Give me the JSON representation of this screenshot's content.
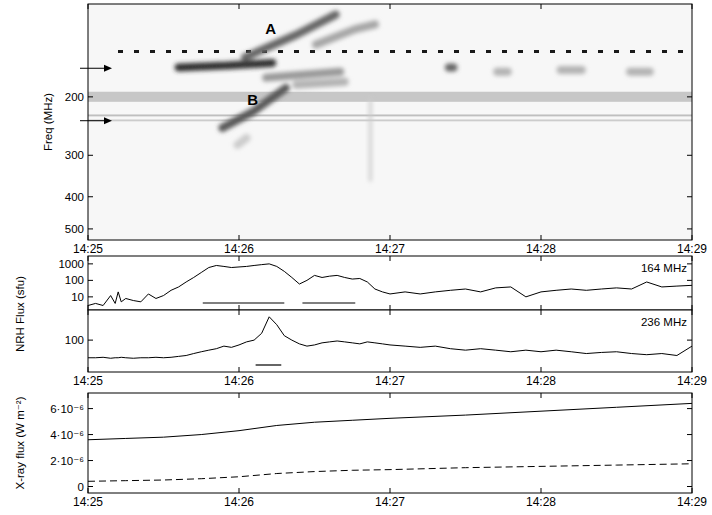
{
  "chart_data": [
    {
      "type": "spectrogram",
      "log": "y",
      "ylabel": "Freq (MHz)",
      "xlim": [
        865,
        869
      ],
      "ylim": [
        540,
        105
      ],
      "xticks": [
        {
          "value": 865,
          "label": "14:25"
        },
        {
          "value": 866,
          "label": "14:26"
        },
        {
          "value": 867,
          "label": "14:27"
        },
        {
          "value": 868,
          "label": "14:28"
        },
        {
          "value": 869,
          "label": "14:29"
        }
      ],
      "yticks": [
        200,
        300,
        400,
        500
      ],
      "arrows": [
        164,
        236
      ],
      "interference": [
        {
          "f": [
            145,
            147
          ],
          "intensity": 0.9,
          "line_style": "dashed"
        },
        {
          "f": [
            193,
            207
          ],
          "intensity": 0.22,
          "line_style": "solid"
        },
        {
          "f": [
            226,
            229
          ],
          "intensity": 0.25,
          "line_style": "solid"
        },
        {
          "f": [
            234,
            237
          ],
          "intensity": 0.2,
          "line_style": "solid"
        }
      ],
      "bursts": [
        {
          "t": [
            865.6,
            865.92,
            866.22
          ],
          "f": [
            163,
            161,
            158
          ],
          "intensity": 0.8
        },
        {
          "t": [
            866.04,
            866.38,
            866.64
          ],
          "f": [
            152,
            130,
            113
          ],
          "intensity": 0.6
        },
        {
          "t": [
            866.51,
            866.77,
            866.9
          ],
          "f": [
            139,
            125,
            121
          ],
          "intensity": 0.35
        },
        {
          "t": [
            866.18,
            866.67
          ],
          "f": [
            175,
            168
          ],
          "intensity": 0.4
        },
        {
          "t": [
            866.38,
            866.7
          ],
          "f": [
            184,
            180
          ],
          "intensity": 0.3
        },
        {
          "t": [
            865.89,
            866.09,
            866.31
          ],
          "f": [
            248,
            222,
            188
          ],
          "intensity": 0.65
        },
        {
          "t": [
            865.99,
            866.05
          ],
          "f": [
            279,
            266
          ],
          "intensity": 0.2
        },
        {
          "t": [
            866.87,
            866.87
          ],
          "f": [
            204,
            357
          ],
          "intensity": 0.2
        },
        {
          "t": [
            867.39,
            867.42
          ],
          "f": [
            163,
            163
          ],
          "intensity": 0.6
        },
        {
          "t": [
            867.71,
            867.78
          ],
          "f": [
            168,
            168
          ],
          "intensity": 0.3
        },
        {
          "t": [
            868.13,
            868.27
          ],
          "f": [
            166,
            166
          ],
          "intensity": 0.3
        },
        {
          "t": [
            868.59,
            868.72
          ],
          "f": [
            168,
            168
          ],
          "intensity": 0.3
        }
      ],
      "annotations": [
        {
          "text": "A",
          "t": 866.21,
          "f": 125
        },
        {
          "text": "B",
          "t": 866.09,
          "f": 204
        }
      ]
    },
    {
      "type": "line",
      "log": "y",
      "ylabel": "NRH Flux (sfu)",
      "tick_labels": "y",
      "xlim": [
        865,
        869
      ],
      "ylim": [
        1.6,
        3000
      ],
      "xticks": [
        {
          "value": 865,
          "label": "14:25"
        },
        {
          "value": 866,
          "label": "14:26"
        },
        {
          "value": 867,
          "label": "14:27"
        },
        {
          "value": 868,
          "label": "14:28"
        },
        {
          "value": 869,
          "label": "14:29"
        }
      ],
      "yticks": [
        10,
        100,
        1000
      ],
      "intervals": [
        [
          865.76,
          866.3
        ],
        [
          866.42,
          866.77
        ]
      ],
      "x": [
        865.0,
        865.05,
        865.1,
        865.15,
        865.18,
        865.2,
        865.22,
        865.25,
        865.3,
        865.35,
        865.4,
        865.45,
        865.5,
        865.55,
        865.6,
        865.65,
        865.7,
        865.75,
        865.8,
        865.85,
        865.9,
        865.95,
        866.0,
        866.05,
        866.1,
        866.15,
        866.2,
        866.25,
        866.3,
        866.35,
        866.4,
        866.45,
        866.5,
        866.55,
        866.6,
        866.65,
        866.7,
        866.75,
        866.8,
        866.85,
        866.9,
        866.95,
        867.0,
        867.1,
        867.2,
        867.3,
        867.4,
        867.5,
        867.6,
        867.7,
        867.8,
        867.9,
        868.0,
        868.1,
        868.2,
        868.3,
        868.4,
        868.5,
        868.6,
        868.7,
        868.8,
        868.9,
        869.0
      ],
      "series": [
        {
          "name": "164 MHz",
          "color": "#000000",
          "values": [
            3,
            4,
            3,
            12,
            4,
            20,
            5,
            8,
            6,
            5,
            15,
            8,
            12,
            25,
            40,
            80,
            150,
            300,
            600,
            800,
            700,
            600,
            650,
            700,
            800,
            900,
            1000,
            700,
            350,
            150,
            60,
            100,
            200,
            150,
            180,
            200,
            150,
            120,
            130,
            80,
            30,
            20,
            15,
            20,
            15,
            20,
            25,
            30,
            20,
            35,
            40,
            10,
            20,
            25,
            30,
            25,
            30,
            35,
            30,
            80,
            40,
            45,
            50
          ]
        }
      ]
    },
    {
      "type": "line",
      "log": "y",
      "xlim": [
        865,
        869
      ],
      "ylim": [
        15,
        600
      ],
      "xticks": [
        {
          "value": 865,
          "label": "14:25"
        },
        {
          "value": 866,
          "label": "14:26"
        },
        {
          "value": 867,
          "label": "14:27"
        },
        {
          "value": 868,
          "label": "14:28"
        },
        {
          "value": 869,
          "label": "14:29"
        }
      ],
      "yticks": [
        100
      ],
      "intervals": [
        [
          866.11,
          866.28
        ]
      ],
      "x": [
        865.0,
        865.05,
        865.1,
        865.15,
        865.18,
        865.2,
        865.22,
        865.25,
        865.3,
        865.35,
        865.4,
        865.45,
        865.5,
        865.55,
        865.6,
        865.65,
        865.7,
        865.75,
        865.8,
        865.85,
        865.9,
        865.95,
        866.0,
        866.05,
        866.1,
        866.15,
        866.2,
        866.25,
        866.3,
        866.35,
        866.4,
        866.45,
        866.5,
        866.55,
        866.6,
        866.65,
        866.7,
        866.75,
        866.8,
        866.85,
        866.9,
        866.95,
        867.0,
        867.1,
        867.2,
        867.3,
        867.4,
        867.5,
        867.6,
        867.7,
        867.8,
        867.9,
        868.0,
        868.1,
        868.2,
        868.3,
        868.4,
        868.5,
        868.6,
        868.7,
        868.8,
        868.9,
        869.0
      ],
      "series": [
        {
          "name": "236 MHz",
          "color": "#000000",
          "values": [
            35,
            35,
            36,
            34,
            35,
            35,
            36,
            35,
            34,
            35,
            35,
            36,
            35,
            36,
            38,
            40,
            45,
            50,
            55,
            60,
            70,
            65,
            75,
            90,
            100,
            150,
            400,
            250,
            130,
            100,
            80,
            70,
            75,
            85,
            90,
            95,
            90,
            85,
            80,
            90,
            85,
            80,
            75,
            70,
            65,
            70,
            60,
            55,
            60,
            55,
            50,
            55,
            50,
            55,
            50,
            45,
            48,
            50,
            45,
            42,
            45,
            40,
            70
          ]
        }
      ]
    },
    {
      "type": "line",
      "ylabel": "X-ray flux (W m⁻²)",
      "xlim": [
        865,
        869
      ],
      "ylim": [
        -5e-07,
        7.2e-06
      ],
      "xticks": [
        {
          "value": 865,
          "label": "14:25"
        },
        {
          "value": 866,
          "label": "14:26"
        },
        {
          "value": 867,
          "label": "14:27"
        },
        {
          "value": 868,
          "label": "14:28"
        },
        {
          "value": 869,
          "label": "14:29"
        }
      ],
      "yticks": [
        0,
        {
          "value": 2e-06,
          "label": "2·10⁻⁶"
        },
        {
          "value": 4e-06,
          "label": "4·10⁻⁶"
        },
        {
          "value": 6e-06,
          "label": "6·10⁻⁶"
        }
      ],
      "x": [
        865.0,
        865.25,
        865.5,
        865.75,
        866.0,
        866.25,
        866.5,
        866.75,
        867.0,
        867.5,
        868.0,
        868.5,
        869.0
      ],
      "series": [
        {
          "color": "#000000",
          "line_style": "solid",
          "values": [
            3.6e-06,
            3.7e-06,
            3.8e-06,
            4e-06,
            4.3e-06,
            4.7e-06,
            4.95e-06,
            5.1e-06,
            5.25e-06,
            5.5e-06,
            5.8e-06,
            6.1e-06,
            6.4e-06
          ]
        },
        {
          "color": "#000000",
          "line_style": "dashed",
          "values": [
            4e-07,
            4.5e-07,
            5e-07,
            6e-07,
            7.5e-07,
            1e-06,
            1.15e-06,
            1.25e-06,
            1.3e-06,
            1.45e-06,
            1.55e-06,
            1.65e-06,
            1.75e-06
          ]
        }
      ]
    }
  ]
}
